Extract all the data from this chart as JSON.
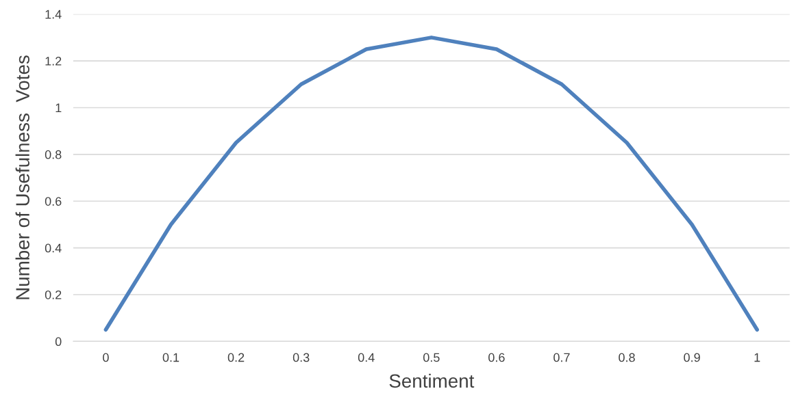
{
  "chart_data": {
    "type": "line",
    "xlabel": "Sentiment",
    "ylabel": "Number of Usefulness  Votes",
    "categories": [
      "0",
      "0.1",
      "0.2",
      "0.3",
      "0.4",
      "0.5",
      "0.6",
      "0.7",
      "0.8",
      "0.9",
      "1"
    ],
    "series": [
      {
        "color": "#4f81bd",
        "values": [
          0.05,
          0.5,
          0.85,
          1.1,
          1.25,
          1.3,
          1.25,
          1.1,
          0.85,
          0.5,
          0.05
        ]
      }
    ],
    "ylim": [
      0,
      1.4
    ],
    "yticks": [
      0,
      0.2,
      0.4,
      0.6,
      0.8,
      1,
      1.2,
      1.4
    ],
    "grid": "y",
    "marker": "none",
    "line_style": "solid",
    "legend": false
  }
}
